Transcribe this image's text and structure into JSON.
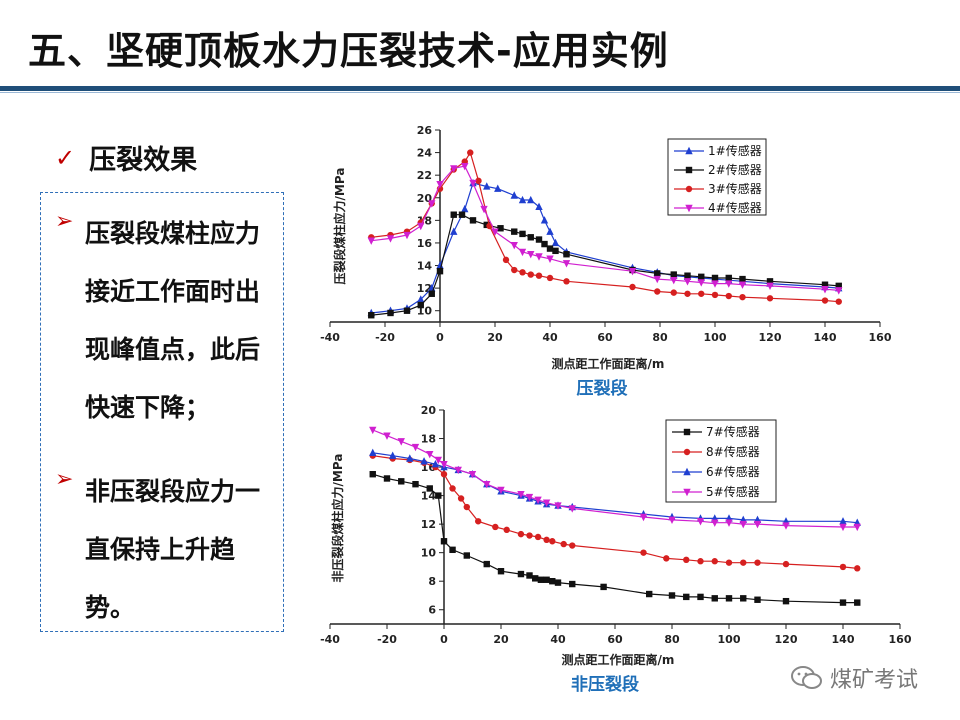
{
  "title": "五、坚硬顶板水力压裂技术-应用实例",
  "effect_heading": "压裂效果",
  "bullets": [
    "压裂段煤柱应力接近工作面时出现峰值点，此后快速下降；",
    "非压裂段应力一直保持上升趋势。"
  ],
  "watermark": "煤矿考试",
  "colors": {
    "accent": "#c00000",
    "rule": "#1f4e79",
    "caption": "#1f6fb8"
  },
  "chart_data": [
    {
      "type": "line",
      "caption": "压裂段",
      "xlabel": "测点距工作面距离/m",
      "ylabel": "压裂段煤柱应力/MPa",
      "xlim": [
        -40,
        160
      ],
      "ylim": [
        9,
        26
      ],
      "xticks": [
        -40,
        -20,
        0,
        20,
        40,
        60,
        80,
        100,
        120,
        140,
        160
      ],
      "yticks": [
        10,
        12,
        14,
        16,
        18,
        20,
        22,
        24,
        26
      ],
      "series": [
        {
          "name": "1#传感器",
          "color": "#1f3fd0",
          "marker": "triangle",
          "x": [
            -25,
            -18,
            -12,
            -7,
            -3,
            0,
            5,
            9,
            12,
            17,
            21,
            27,
            30,
            33,
            36,
            38,
            40,
            42,
            46,
            70,
            79,
            85,
            90,
            95,
            100,
            105,
            110,
            120,
            140,
            145
          ],
          "y": [
            9.8,
            10,
            10.2,
            11,
            12,
            14,
            17,
            19,
            21.3,
            21,
            20.8,
            20.2,
            19.8,
            19.8,
            19.2,
            18,
            17,
            16,
            15.2,
            13.8,
            13.4,
            13.1,
            13.0,
            12.9,
            12.8,
            12.7,
            12.6,
            12.4,
            12.1,
            12.0
          ]
        },
        {
          "name": "2#传感器",
          "color": "#111111",
          "marker": "square",
          "x": [
            -25,
            -18,
            -12,
            -7,
            -3,
            0,
            5,
            8,
            12,
            17,
            22,
            27,
            30,
            33,
            36,
            38,
            40,
            42,
            46,
            70,
            79,
            85,
            90,
            95,
            100,
            105,
            110,
            120,
            140,
            145
          ],
          "y": [
            9.6,
            9.8,
            10.0,
            10.5,
            11.5,
            13.5,
            18.5,
            18.5,
            18.0,
            17.6,
            17.3,
            17.0,
            16.8,
            16.5,
            16.3,
            15.9,
            15.5,
            15.3,
            15.0,
            13.6,
            13.3,
            13.2,
            13.1,
            13.0,
            12.9,
            12.9,
            12.8,
            12.6,
            12.3,
            12.2
          ]
        },
        {
          "name": "3#传感器",
          "color": "#d62020",
          "marker": "circle",
          "x": [
            -25,
            -18,
            -12,
            -7,
            -3,
            0,
            5,
            9,
            11,
            14,
            18,
            24,
            27,
            30,
            33,
            36,
            40,
            46,
            70,
            79,
            85,
            90,
            95,
            100,
            105,
            110,
            120,
            140,
            145
          ],
          "y": [
            16.5,
            16.7,
            17.0,
            17.8,
            19.5,
            20.8,
            22.5,
            23.2,
            24.0,
            21.5,
            17.5,
            14.5,
            13.6,
            13.4,
            13.2,
            13.1,
            12.9,
            12.6,
            12.1,
            11.7,
            11.6,
            11.5,
            11.5,
            11.4,
            11.3,
            11.2,
            11.1,
            10.9,
            10.8
          ]
        },
        {
          "name": "4#传感器",
          "color": "#d020d0",
          "marker": "triangle-down",
          "x": [
            -25,
            -18,
            -12,
            -7,
            -3,
            0,
            5,
            9,
            12,
            16,
            20,
            27,
            30,
            33,
            36,
            40,
            46,
            70,
            79,
            85,
            90,
            95,
            100,
            105,
            110,
            120,
            140,
            145
          ],
          "y": [
            16.2,
            16.4,
            16.7,
            17.5,
            19.5,
            21.2,
            22.6,
            22.8,
            21.3,
            19.0,
            17.0,
            15.8,
            15.2,
            15.0,
            14.8,
            14.6,
            14.2,
            13.5,
            12.8,
            12.7,
            12.6,
            12.5,
            12.4,
            12.4,
            12.3,
            12.2,
            11.9,
            11.8
          ]
        }
      ]
    },
    {
      "type": "line",
      "caption": "非压裂段",
      "xlabel": "测点距工作面距离/m",
      "ylabel": "非压裂段煤柱应力/MPa",
      "xlim": [
        -40,
        160
      ],
      "ylim": [
        5,
        20
      ],
      "xticks": [
        -40,
        -20,
        0,
        20,
        40,
        60,
        80,
        100,
        120,
        140,
        160
      ],
      "yticks": [
        6,
        8,
        10,
        12,
        14,
        16,
        18,
        20
      ],
      "series": [
        {
          "name": "7#传感器",
          "color": "#111111",
          "marker": "square",
          "x": [
            -25,
            -20,
            -15,
            -10,
            -5,
            -2,
            0,
            3,
            8,
            15,
            20,
            27,
            30,
            32,
            34,
            36,
            38,
            40,
            45,
            56,
            72,
            80,
            85,
            90,
            95,
            100,
            105,
            110,
            120,
            140,
            145
          ],
          "y": [
            15.5,
            15.2,
            15.0,
            14.8,
            14.5,
            14.0,
            10.8,
            10.2,
            9.8,
            9.2,
            8.7,
            8.5,
            8.4,
            8.2,
            8.1,
            8.1,
            8.0,
            7.9,
            7.8,
            7.6,
            7.1,
            7.0,
            6.9,
            6.9,
            6.8,
            6.8,
            6.8,
            6.7,
            6.6,
            6.5,
            6.5
          ]
        },
        {
          "name": "8#传感器",
          "color": "#d62020",
          "marker": "circle",
          "x": [
            -25,
            -18,
            -12,
            -7,
            -3,
            0,
            3,
            6,
            8,
            12,
            18,
            22,
            27,
            30,
            33,
            36,
            38,
            42,
            45,
            70,
            78,
            85,
            90,
            95,
            100,
            105,
            110,
            120,
            140,
            145
          ],
          "y": [
            16.8,
            16.6,
            16.5,
            16.3,
            16.0,
            15.5,
            14.5,
            13.8,
            13.2,
            12.2,
            11.8,
            11.6,
            11.3,
            11.2,
            11.1,
            10.9,
            10.8,
            10.6,
            10.5,
            10.0,
            9.6,
            9.5,
            9.4,
            9.4,
            9.3,
            9.3,
            9.3,
            9.2,
            9.0,
            8.9
          ]
        },
        {
          "name": "6#传感器",
          "color": "#1f3fd0",
          "marker": "triangle",
          "x": [
            -25,
            -18,
            -12,
            -7,
            -3,
            0,
            5,
            10,
            15,
            20,
            27,
            30,
            33,
            36,
            40,
            45,
            70,
            80,
            90,
            95,
            100,
            105,
            110,
            120,
            140,
            145
          ],
          "y": [
            17.0,
            16.8,
            16.6,
            16.4,
            16.2,
            16.0,
            15.8,
            15.5,
            14.8,
            14.3,
            14.0,
            13.8,
            13.6,
            13.4,
            13.3,
            13.2,
            12.7,
            12.5,
            12.4,
            12.4,
            12.4,
            12.3,
            12.3,
            12.2,
            12.2,
            12.1
          ]
        },
        {
          "name": "5#传感器",
          "color": "#d020d0",
          "marker": "triangle-down",
          "x": [
            -25,
            -20,
            -15,
            -10,
            -5,
            -2,
            0,
            5,
            10,
            15,
            20,
            27,
            30,
            33,
            36,
            40,
            45,
            70,
            80,
            90,
            95,
            100,
            105,
            110,
            120,
            140,
            145
          ],
          "y": [
            18.6,
            18.2,
            17.8,
            17.4,
            16.9,
            16.5,
            16.2,
            15.8,
            15.5,
            14.8,
            14.4,
            14.1,
            13.9,
            13.7,
            13.5,
            13.3,
            13.1,
            12.5,
            12.3,
            12.2,
            12.1,
            12.1,
            12.0,
            12.0,
            11.9,
            11.8,
            11.8
          ]
        }
      ]
    }
  ]
}
